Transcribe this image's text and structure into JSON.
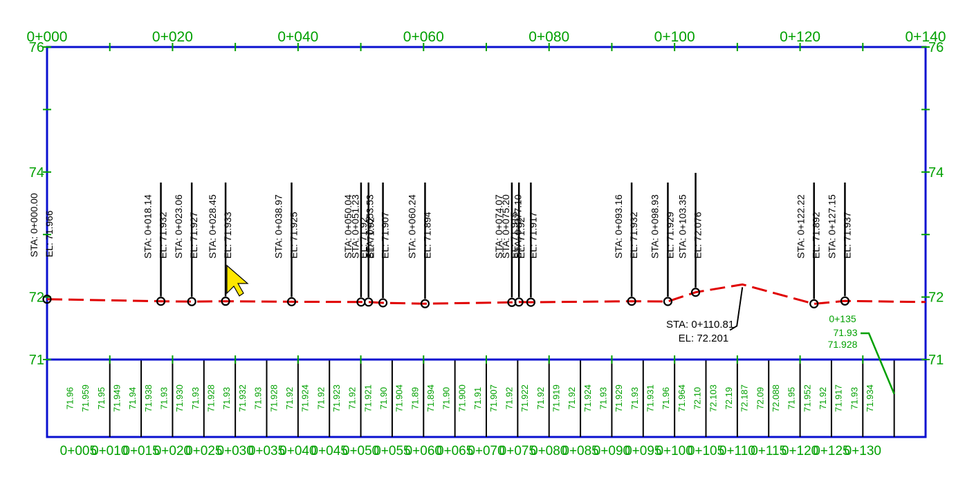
{
  "profile": {
    "top_stations": [
      "0+000",
      "0+020",
      "0+040",
      "0+060",
      "0+080",
      "0+100",
      "0+120",
      "0+140"
    ],
    "elevation_labels": [
      "76",
      "74",
      "72",
      "71"
    ],
    "vertical_range": [
      71,
      76
    ],
    "station_range": [
      0,
      140
    ],
    "colors": {
      "frame": "#0a10d0",
      "text_green": "#00a000",
      "profile_line": "#e00000",
      "marker": "#000000"
    },
    "points": [
      {
        "station": 0.0,
        "elev": 71.966,
        "sta": "STA: 0+000.00",
        "el": "EL: 71.966"
      },
      {
        "station": 18.14,
        "elev": 71.932,
        "sta": "STA: 0+018.14",
        "el": "EL: 71.932"
      },
      {
        "station": 23.06,
        "elev": 71.927,
        "sta": "STA: 0+023.06",
        "el": "EL: 71.927"
      },
      {
        "station": 28.45,
        "elev": 71.933,
        "sta": "STA: 0+028.45",
        "el": "EL: 71.933"
      },
      {
        "station": 38.97,
        "elev": 71.925,
        "sta": "STA: 0+038.97",
        "el": "EL: 71.925"
      },
      {
        "station": 50.04,
        "elev": 71.92,
        "sta": "STA: 0+050.04",
        "el": "EL: 71.92"
      },
      {
        "station": 51.23,
        "elev": 71.92,
        "sta": "STA: 0+051.23",
        "el": "EL: 71.92"
      },
      {
        "station": 53.53,
        "elev": 71.907,
        "sta": "STA: 0+053.53",
        "el": "EL: 71.907"
      },
      {
        "station": 60.24,
        "elev": 71.894,
        "sta": "STA: 0+060.24",
        "el": "EL: 71.894"
      },
      {
        "station": 74.07,
        "elev": 71.915,
        "sta": "STA: 0+074.07",
        "el": "EL: 71.915"
      },
      {
        "station": 75.2,
        "elev": 71.92,
        "sta": "STA: 0+075.20",
        "el": "EL: 71.92"
      },
      {
        "station": 77.1,
        "elev": 71.917,
        "sta": "STA: 0+077.10",
        "el": "EL: 71.917"
      },
      {
        "station": 93.16,
        "elev": 71.932,
        "sta": "STA: 0+093.16",
        "el": "EL: 71.932"
      },
      {
        "station": 98.93,
        "elev": 71.929,
        "sta": "STA: 0+098.93",
        "el": "EL: 71.929"
      },
      {
        "station": 103.35,
        "elev": 72.076,
        "sta": "STA: 0+103.35",
        "el": "EL: 72.076"
      },
      {
        "station": 122.22,
        "elev": 71.892,
        "sta": "STA: 0+122.22",
        "el": "EL: 71.892"
      },
      {
        "station": 127.15,
        "elev": 71.937,
        "sta": "STA: 0+127.15",
        "el": "EL: 71.937"
      }
    ],
    "callout": {
      "station": 110.81,
      "elev": 72.201,
      "sta": "STA: 0+110.81",
      "el": "EL: 72.201"
    },
    "tooltip": {
      "station": "0+135",
      "value1": "71.93",
      "value2": "71.928",
      "target_station": 135,
      "target_elev": 70.45
    },
    "band_values": [
      "71.96",
      "71.959",
      "71.95",
      "71.949",
      "71.94",
      "71.938",
      "71.93",
      "71.930",
      "71.93",
      "71.928",
      "71.93",
      "71.932",
      "71.93",
      "71.928",
      "71.92",
      "71.924",
      "71.92",
      "71.923",
      "71.92",
      "71.921",
      "71.90",
      "71.904",
      "71.89",
      "71.894",
      "71.90",
      "71.900",
      "71.91",
      "71.907",
      "71.92",
      "71.922",
      "71.92",
      "71.919",
      "71.92",
      "71.924",
      "71.93",
      "71.929",
      "71.93",
      "71.931",
      "71.96",
      "71.964",
      "72.10",
      "72.103",
      "72.19",
      "72.187",
      "72.09",
      "72.088",
      "71.95",
      "71.952",
      "71.92",
      "71.917",
      "71.93",
      "71.934"
    ],
    "bottom_stations": [
      "0+005",
      "0+010",
      "0+015",
      "0+020",
      "0+025",
      "0+030",
      "0+035",
      "0+040",
      "0+045",
      "0+050",
      "0+055",
      "0+060",
      "0+065",
      "0+070",
      "0+075",
      "0+080",
      "0+085",
      "0+090",
      "0+095",
      "0+100",
      "0+105",
      "0+110",
      "0+115",
      "0+120",
      "0+125",
      "0+130"
    ]
  }
}
